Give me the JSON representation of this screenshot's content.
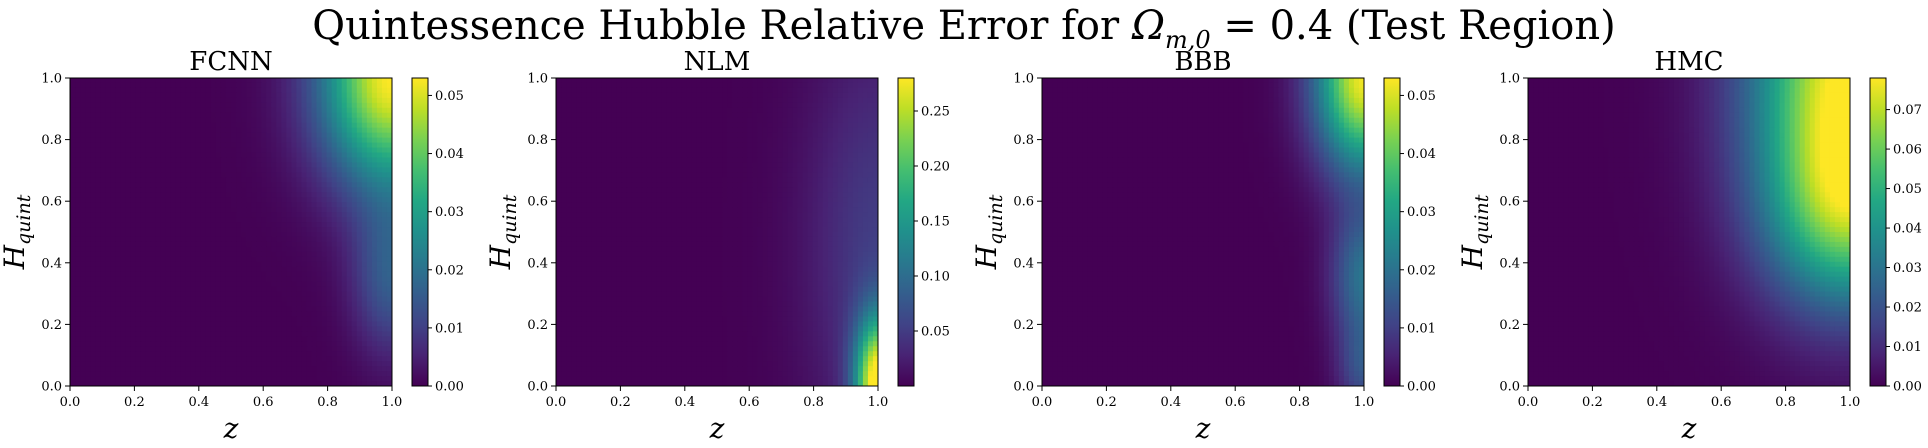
{
  "figure": {
    "title_prefix": "Quintessence Hubble Relative Error for ",
    "title_symbol": "Ω",
    "title_subscript": "m,0",
    "title_suffix": " = 0.4 (Test Region)"
  },
  "colors": {
    "viridis_low": "#440154",
    "viridis_mid": "#21918c",
    "viridis_high": "#fde725"
  },
  "chart_data": [
    {
      "type": "heatmap",
      "title": "FCNN",
      "xlabel": "z",
      "ylabel_main": "H",
      "ylabel_sub": "quint",
      "xlim": [
        0.0,
        1.0
      ],
      "ylim": [
        0.0,
        1.0
      ],
      "x_ticks": [
        "0.0",
        "0.2",
        "0.4",
        "0.6",
        "0.8",
        "1.0"
      ],
      "y_ticks": [
        "0.0",
        "0.2",
        "0.4",
        "0.6",
        "0.8",
        "1.0"
      ],
      "colorbar_range": [
        0.0,
        0.053
      ],
      "colorbar_ticks": [
        {
          "value": 0.0,
          "label": "0.00"
        },
        {
          "value": 0.01,
          "label": "0.01"
        },
        {
          "value": 0.02,
          "label": "0.02"
        },
        {
          "value": 0.03,
          "label": "0.03"
        },
        {
          "value": 0.04,
          "label": "0.04"
        },
        {
          "value": 0.05,
          "label": "0.05"
        }
      ],
      "hotspots": [
        {
          "z": 1.0,
          "h": 1.0,
          "peak": 0.053,
          "rz": 0.22,
          "rh": 0.35
        },
        {
          "z": 1.0,
          "h": 0.35,
          "peak": 0.015,
          "rz": 0.12,
          "rh": 0.25
        }
      ]
    },
    {
      "type": "heatmap",
      "title": "NLM",
      "xlabel": "z",
      "ylabel_main": "H",
      "ylabel_sub": "quint",
      "xlim": [
        0.0,
        1.0
      ],
      "ylim": [
        0.0,
        1.0
      ],
      "x_ticks": [
        "0.0",
        "0.2",
        "0.4",
        "0.6",
        "0.8",
        "1.0"
      ],
      "y_ticks": [
        "0.0",
        "0.2",
        "0.4",
        "0.6",
        "0.8",
        "1.0"
      ],
      "colorbar_range": [
        0.0,
        0.28
      ],
      "colorbar_ticks": [
        {
          "value": 0.05,
          "label": "0.05"
        },
        {
          "value": 0.1,
          "label": "0.10"
        },
        {
          "value": 0.15,
          "label": "0.15"
        },
        {
          "value": 0.2,
          "label": "0.20"
        },
        {
          "value": 0.25,
          "label": "0.25"
        }
      ],
      "hotspots": [
        {
          "z": 1.0,
          "h": 0.0,
          "peak": 0.28,
          "rz": 0.07,
          "rh": 0.22
        },
        {
          "z": 1.0,
          "h": 0.45,
          "peak": 0.05,
          "rz": 0.22,
          "rh": 0.7
        }
      ]
    },
    {
      "type": "heatmap",
      "title": "BBB",
      "xlabel": "z",
      "ylabel_main": "H",
      "ylabel_sub": "quint",
      "xlim": [
        0.0,
        1.0
      ],
      "ylim": [
        0.0,
        1.0
      ],
      "x_ticks": [
        "0.0",
        "0.2",
        "0.4",
        "0.6",
        "0.8",
        "1.0"
      ],
      "y_ticks": [
        "0.0",
        "0.2",
        "0.4",
        "0.6",
        "0.8",
        "1.0"
      ],
      "colorbar_range": [
        0.0,
        0.053
      ],
      "colorbar_ticks": [
        {
          "value": 0.0,
          "label": "0.00"
        },
        {
          "value": 0.01,
          "label": "0.01"
        },
        {
          "value": 0.02,
          "label": "0.02"
        },
        {
          "value": 0.03,
          "label": "0.03"
        },
        {
          "value": 0.04,
          "label": "0.04"
        },
        {
          "value": 0.05,
          "label": "0.05"
        }
      ],
      "hotspots": [
        {
          "z": 1.0,
          "h": 1.0,
          "peak": 0.052,
          "rz": 0.15,
          "rh": 0.3
        },
        {
          "z": 1.0,
          "h": 0.35,
          "peak": 0.02,
          "rz": 0.1,
          "rh": 0.22
        },
        {
          "z": 1.0,
          "h": 0.05,
          "peak": 0.012,
          "rz": 0.08,
          "rh": 0.15
        }
      ]
    },
    {
      "type": "heatmap",
      "title": "HMC",
      "xlabel": "z",
      "ylabel_main": "H",
      "ylabel_sub": "quint",
      "xlim": [
        0.0,
        1.0
      ],
      "ylim": [
        0.0,
        1.0
      ],
      "x_ticks": [
        "0.0",
        "0.2",
        "0.4",
        "0.6",
        "0.8",
        "1.0"
      ],
      "y_ticks": [
        "0.0",
        "0.2",
        "0.4",
        "0.6",
        "0.8",
        "1.0"
      ],
      "colorbar_range": [
        0.0,
        0.078
      ],
      "colorbar_ticks": [
        {
          "value": 0.0,
          "label": "0.00"
        },
        {
          "value": 0.01,
          "label": "0.01"
        },
        {
          "value": 0.02,
          "label": "0.02"
        },
        {
          "value": 0.03,
          "label": "0.03"
        },
        {
          "value": 0.04,
          "label": "0.04"
        },
        {
          "value": 0.05,
          "label": "0.05"
        },
        {
          "value": 0.06,
          "label": "0.06"
        },
        {
          "value": 0.07,
          "label": "0.07"
        }
      ],
      "hotspots": [
        {
          "z": 1.0,
          "h": 1.0,
          "peak": 0.078,
          "rz": 0.3,
          "rh": 0.55
        },
        {
          "z": 1.0,
          "h": 0.55,
          "peak": 0.035,
          "rz": 0.25,
          "rh": 0.3
        }
      ]
    }
  ]
}
